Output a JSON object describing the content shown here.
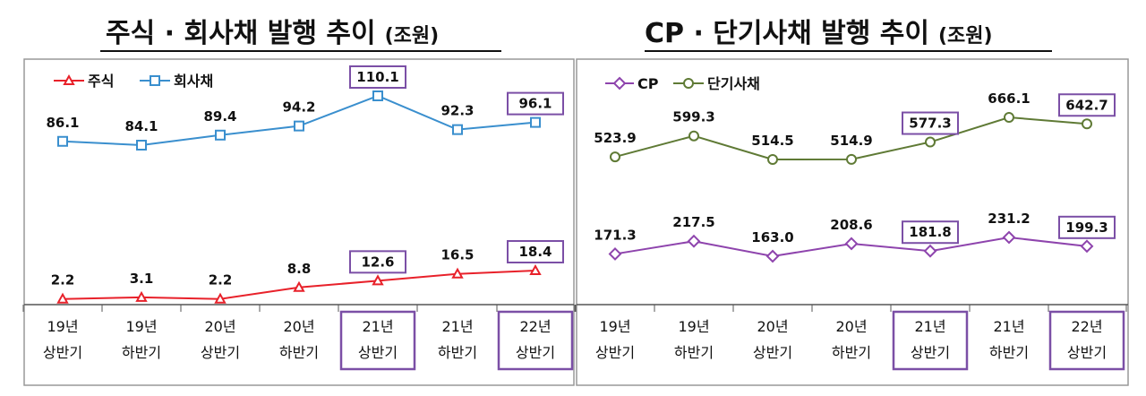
{
  "colors": {
    "stocks": "#e8212a",
    "corp_bonds": "#3a8fce",
    "cp": "#8e44ad",
    "short_term_bonds": "#5f7a35",
    "highlight_box": "#7b4fa6",
    "frame": "#999999"
  },
  "chart_data": [
    {
      "type": "line",
      "title": "주식 · 회사채 발행 추이",
      "unit": "(조원)",
      "categories": [
        [
          "19년",
          "상반기"
        ],
        [
          "19년",
          "하반기"
        ],
        [
          "20년",
          "상반기"
        ],
        [
          "20년",
          "하반기"
        ],
        [
          "21년",
          "상반기"
        ],
        [
          "21년",
          "하반기"
        ],
        [
          "22년",
          "상반기"
        ]
      ],
      "highlighted_categories": [
        4,
        6
      ],
      "series": [
        {
          "name": "주식",
          "marker": "triangle",
          "values": [
            2.2,
            3.1,
            2.2,
            8.8,
            12.6,
            16.5,
            18.4
          ],
          "labels": [
            "2.2",
            "3.1",
            "2.2",
            "8.8",
            "12.6",
            "16.5",
            "18.4"
          ],
          "boxed_labels": [
            4,
            6
          ]
        },
        {
          "name": "회사채",
          "marker": "square",
          "values": [
            86.1,
            84.1,
            89.4,
            94.2,
            110.1,
            92.3,
            96.1
          ],
          "labels": [
            "86.1",
            "84.1",
            "89.4",
            "94.2",
            "110.1",
            "92.3",
            "96.1"
          ],
          "boxed_labels": [
            4,
            6
          ]
        }
      ],
      "legend": "top-left",
      "grid": false
    },
    {
      "type": "line",
      "title": "CP · 단기사채 발행 추이",
      "unit": "(조원)",
      "categories": [
        [
          "19년",
          "상반기"
        ],
        [
          "19년",
          "하반기"
        ],
        [
          "20년",
          "상반기"
        ],
        [
          "20년",
          "하반기"
        ],
        [
          "21년",
          "상반기"
        ],
        [
          "21년",
          "하반기"
        ],
        [
          "22년",
          "상반기"
        ]
      ],
      "highlighted_categories": [
        4,
        6
      ],
      "series": [
        {
          "name": "CP",
          "marker": "diamond",
          "values": [
            171.3,
            217.5,
            163.0,
            208.6,
            181.8,
            231.2,
            199.3
          ],
          "labels": [
            "171.3",
            "217.5",
            "163.0",
            "208.6",
            "181.8",
            "231.2",
            "199.3"
          ],
          "boxed_labels": [
            4,
            6
          ]
        },
        {
          "name": "단기사채",
          "marker": "circle",
          "values": [
            523.9,
            599.3,
            514.5,
            514.9,
            577.3,
            666.1,
            642.7
          ],
          "labels": [
            "523.9",
            "599.3",
            "514.5",
            "514.9",
            "577.3",
            "666.1",
            "642.7"
          ],
          "boxed_labels": [
            4,
            6
          ]
        }
      ],
      "legend": "top-left",
      "grid": false
    }
  ]
}
